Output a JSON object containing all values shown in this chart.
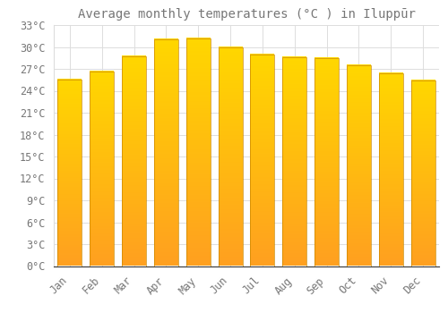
{
  "title": "Average monthly temperatures (°C ) in Iluppūr",
  "months": [
    "Jan",
    "Feb",
    "Mar",
    "Apr",
    "May",
    "Jun",
    "Jul",
    "Aug",
    "Sep",
    "Oct",
    "Nov",
    "Dec"
  ],
  "values": [
    25.5,
    26.6,
    28.7,
    31.0,
    31.2,
    30.0,
    29.0,
    28.6,
    28.5,
    27.5,
    26.4,
    25.4
  ],
  "bar_color_top": "#FFD700",
  "bar_color_bottom": "#FFA020",
  "bar_edge_color": "#CC8800",
  "background_color": "#FFFFFF",
  "grid_color": "#DDDDDD",
  "text_color": "#777777",
  "ylim": [
    0,
    33
  ],
  "ytick_step": 3,
  "title_fontsize": 10,
  "tick_fontsize": 8.5,
  "font_family": "monospace"
}
